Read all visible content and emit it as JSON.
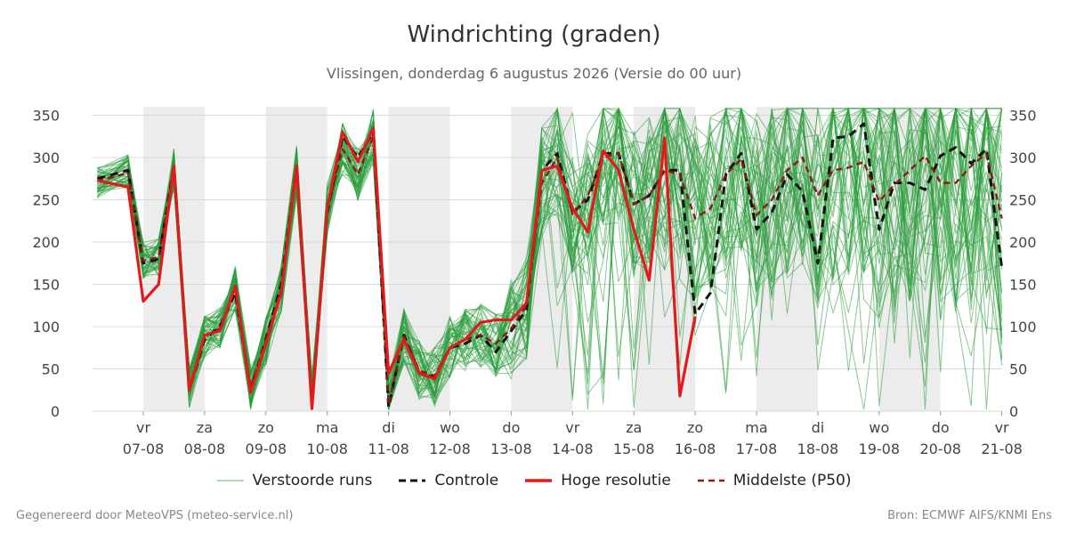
{
  "chart_data": {
    "type": "line",
    "title": "Windrichting (graden)",
    "subtitle": "Vlissingen, donderdag  6 augustus 2026 (Versie do 00 uur)",
    "ylim": [
      0,
      360
    ],
    "yticks": [
      0,
      50,
      100,
      150,
      200,
      250,
      300,
      350
    ],
    "grid": true,
    "legend_position": "bottom",
    "x_days": [
      {
        "day": "vr",
        "date": "07-08"
      },
      {
        "day": "za",
        "date": "08-08"
      },
      {
        "day": "zo",
        "date": "09-08"
      },
      {
        "day": "ma",
        "date": "10-08"
      },
      {
        "day": "di",
        "date": "11-08"
      },
      {
        "day": "wo",
        "date": "12-08"
      },
      {
        "day": "do",
        "date": "13-08"
      },
      {
        "day": "vr",
        "date": "14-08"
      },
      {
        "day": "za",
        "date": "15-08"
      },
      {
        "day": "zo",
        "date": "16-08"
      },
      {
        "day": "ma",
        "date": "17-08"
      },
      {
        "day": "di",
        "date": "18-08"
      },
      {
        "day": "wo",
        "date": "19-08"
      },
      {
        "day": "do",
        "date": "20-08"
      },
      {
        "day": "vr",
        "date": "21-08"
      }
    ],
    "weekend_shading_days": [
      [
        0,
        1
      ],
      [
        2,
        3
      ],
      [
        4,
        5
      ],
      [
        6,
        7
      ],
      [
        8,
        9
      ],
      [
        10,
        11
      ],
      [
        12,
        13
      ]
    ],
    "series": [
      {
        "name": "Hoge resolutie",
        "color": "#e31a1c",
        "style": "solid",
        "x": [
          -0.75,
          -0.25,
          0,
          0.25,
          0.5,
          0.75,
          1,
          1.25,
          1.5,
          1.75,
          2,
          2.25,
          2.5,
          2.75,
          3,
          3.25,
          3.5,
          3.75,
          4,
          4.25,
          4.5,
          4.75,
          5,
          5.25,
          5.5,
          5.75,
          6,
          6.25,
          6.5,
          6.75,
          7,
          7.25,
          7.5,
          7.75,
          8,
          8.25,
          8.5,
          8.75,
          9
        ],
        "y": [
          273,
          265,
          130,
          150,
          290,
          25,
          90,
          95,
          148,
          22,
          80,
          140,
          290,
          3,
          240,
          330,
          295,
          335,
          45,
          85,
          45,
          38,
          75,
          85,
          105,
          108,
          108,
          128,
          285,
          290,
          240,
          212,
          308,
          285,
          215,
          155,
          323,
          18,
          112
        ]
      },
      {
        "name": "Controle",
        "color": "#111111",
        "style": "dashed",
        "x": [
          -0.75,
          -0.25,
          0,
          0.25,
          0.5,
          0.75,
          1,
          1.25,
          1.5,
          1.75,
          2,
          2.25,
          2.5,
          2.75,
          3,
          3.25,
          3.5,
          3.75,
          4,
          4.25,
          4.5,
          4.75,
          5,
          5.25,
          5.5,
          5.75,
          6,
          6.25,
          6.5,
          6.75,
          7,
          7.25,
          7.5,
          7.75,
          8,
          8.25,
          8.5,
          8.75,
          9,
          9.25,
          9.5,
          9.75,
          10,
          10.25,
          10.5,
          10.75,
          11,
          11.25,
          11.5,
          11.75,
          12,
          12.25,
          12.5,
          12.75,
          13,
          13.25,
          13.5,
          13.75,
          14
        ],
        "y": [
          275,
          285,
          175,
          180,
          290,
          25,
          85,
          100,
          140,
          25,
          85,
          150,
          290,
          5,
          235,
          325,
          300,
          330,
          5,
          90,
          45,
          40,
          75,
          80,
          90,
          70,
          95,
          120,
          285,
          305,
          235,
          250,
          305,
          305,
          245,
          255,
          285,
          285,
          115,
          140,
          280,
          305,
          215,
          235,
          280,
          260,
          175,
          323,
          325,
          340,
          215,
          270,
          270,
          262,
          302,
          312,
          293,
          310,
          170
        ]
      },
      {
        "name": "Middelste (P50)",
        "color": "#8b1a1a",
        "style": "dashed",
        "x": [
          -0.75,
          -0.25,
          0,
          0.25,
          0.5,
          0.75,
          1,
          1.25,
          1.5,
          1.75,
          2,
          2.25,
          2.5,
          2.75,
          3,
          3.25,
          3.5,
          3.75,
          4,
          4.25,
          4.5,
          4.75,
          5,
          5.25,
          5.5,
          5.75,
          6,
          6.25,
          6.5,
          6.75,
          7,
          7.25,
          7.5,
          7.75,
          8,
          8.25,
          8.5,
          8.75,
          9,
          9.25,
          9.5,
          9.75,
          10,
          10.25,
          10.5,
          10.75,
          11,
          11.25,
          11.5,
          11.75,
          12,
          12.25,
          12.5,
          12.75,
          13,
          13.25,
          13.5,
          13.75,
          14
        ],
        "y": [
          272,
          282,
          178,
          182,
          287,
          28,
          88,
          98,
          145,
          28,
          83,
          145,
          285,
          12,
          238,
          310,
          280,
          325,
          8,
          88,
          48,
          42,
          75,
          85,
          90,
          80,
          98,
          125,
          270,
          300,
          232,
          255,
          300,
          305,
          245,
          255,
          285,
          280,
          228,
          240,
          280,
          298,
          232,
          250,
          285,
          300,
          255,
          285,
          288,
          295,
          248,
          268,
          285,
          302,
          270,
          270,
          290,
          305,
          228
        ]
      }
    ],
    "ensemble": {
      "name": "Verstoorde runs",
      "color": "#2a9d3a",
      "members": 51
    },
    "legend": [
      {
        "label": "Verstoorde runs",
        "color": "#2a9d3a",
        "style": "thin"
      },
      {
        "label": "Controle",
        "color": "#111111",
        "style": "dashed"
      },
      {
        "label": "Hoge resolutie",
        "color": "#e31a1c",
        "style": "solid"
      },
      {
        "label": "Middelste (P50)",
        "color": "#8b1a1a",
        "style": "dashed"
      }
    ]
  },
  "footer": {
    "left": "Gegenereerd door MeteoVPS (meteo-service.nl)",
    "right": "Bron: ECMWF AIFS/KNMI Ens"
  }
}
